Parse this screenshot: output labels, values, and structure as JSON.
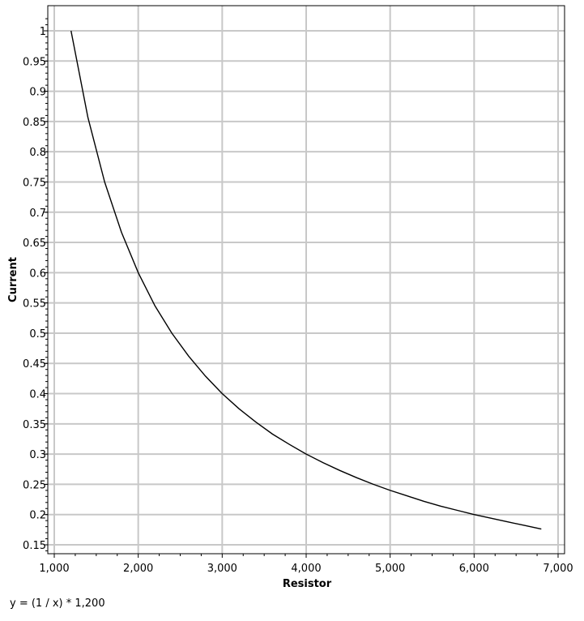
{
  "chart_data": {
    "type": "line",
    "title": "",
    "xlabel": "Resistor",
    "ylabel": "Current",
    "formula": "y = (1 / x) * 1,200",
    "xlim": [
      1000,
      7000
    ],
    "ylim": [
      0.15,
      1.0
    ],
    "grid": true,
    "x_ticks": [
      1000,
      2000,
      3000,
      4000,
      5000,
      6000,
      7000
    ],
    "x_tick_labels": [
      "1,000",
      "2,000",
      "3,000",
      "4,000",
      "5,000",
      "6,000",
      "7,000"
    ],
    "y_ticks": [
      0.15,
      0.2,
      0.25,
      0.3,
      0.35,
      0.4,
      0.45,
      0.5,
      0.55,
      0.6,
      0.65,
      0.7,
      0.75,
      0.8,
      0.85,
      0.9,
      0.95,
      1
    ],
    "y_tick_labels": [
      "0.15",
      "0.2",
      "0.25",
      "0.3",
      "0.35",
      "0.4",
      "0.45",
      "0.5",
      "0.55",
      "0.6",
      "0.65",
      "0.7",
      "0.75",
      "0.8",
      "0.85",
      "0.9",
      "0.95",
      "1"
    ],
    "series": [
      {
        "color": "#000000",
        "x": [
          1200,
          1400,
          1600,
          1800,
          2000,
          2200,
          2400,
          2600,
          2800,
          3000,
          3200,
          3400,
          3600,
          3800,
          4000,
          4200,
          4400,
          4600,
          4800,
          5000,
          5200,
          5400,
          5600,
          5800,
          6000,
          6200,
          6400,
          6600,
          6800
        ],
        "y": [
          1.0,
          0.857,
          0.75,
          0.667,
          0.6,
          0.545,
          0.5,
          0.462,
          0.429,
          0.4,
          0.375,
          0.353,
          0.333,
          0.316,
          0.3,
          0.286,
          0.273,
          0.261,
          0.25,
          0.24,
          0.231,
          0.222,
          0.214,
          0.207,
          0.2,
          0.194,
          0.188,
          0.182,
          0.176
        ]
      }
    ]
  }
}
